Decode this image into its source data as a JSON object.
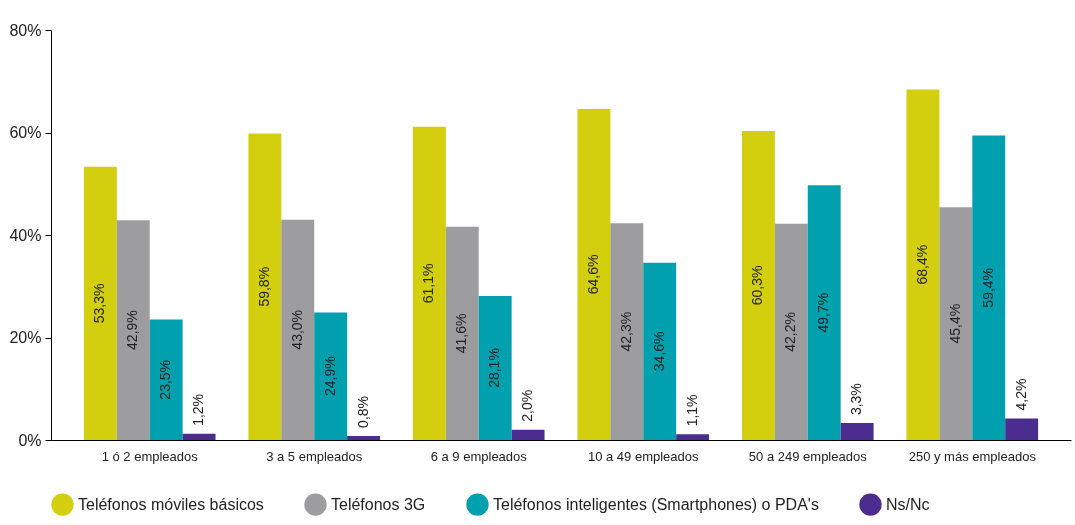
{
  "chart_data": {
    "type": "bar",
    "categories": [
      "1 ó 2 empleados",
      "3 a 5 empleados",
      "6 a 9 empleados",
      "10 a 49 empleados",
      "50 a 249 empleados",
      "250 y más empleados"
    ],
    "series": [
      {
        "name": "Teléfonos móviles básicos",
        "color": "#d3cf0f",
        "values": [
          53.3,
          59.8,
          61.1,
          64.6,
          60.3,
          68.4
        ],
        "value_labels": [
          "53,3%",
          "59,8%",
          "61,1%",
          "64,6%",
          "60,3%",
          "68,4%"
        ]
      },
      {
        "name": "Teléfonos 3G",
        "color": "#9d9d9f",
        "values": [
          42.9,
          43.0,
          41.6,
          42.3,
          42.2,
          45.4
        ],
        "value_labels": [
          "42,9%",
          "43,0%",
          "41,6%",
          "42,3%",
          "42,2%",
          "45,4%"
        ]
      },
      {
        "name": "Teléfonos inteligentes (Smartphones) o PDA's",
        "color": "#00a0ae",
        "values": [
          23.5,
          24.9,
          28.1,
          34.6,
          49.7,
          59.4
        ],
        "value_labels": [
          "23,5%",
          "24,9%",
          "28,1%",
          "34,6%",
          "49,7%",
          "59,4%"
        ]
      },
      {
        "name": "Ns/Nc",
        "color": "#4b2d8f",
        "values": [
          1.2,
          0.8,
          2.0,
          1.1,
          3.3,
          4.2
        ],
        "value_labels": [
          "1,2%",
          "0,8%",
          "2,0%",
          "1,1%",
          "3,3%",
          "4,2%"
        ]
      }
    ],
    "ylim": [
      0,
      80
    ],
    "yticks": [
      {
        "value": 0,
        "label": "0%"
      },
      {
        "value": 20,
        "label": "20%"
      },
      {
        "value": 40,
        "label": "40%"
      },
      {
        "value": 60,
        "label": "60%"
      },
      {
        "value": 80,
        "label": "80%"
      }
    ],
    "grid": false,
    "legend": "bottom"
  }
}
